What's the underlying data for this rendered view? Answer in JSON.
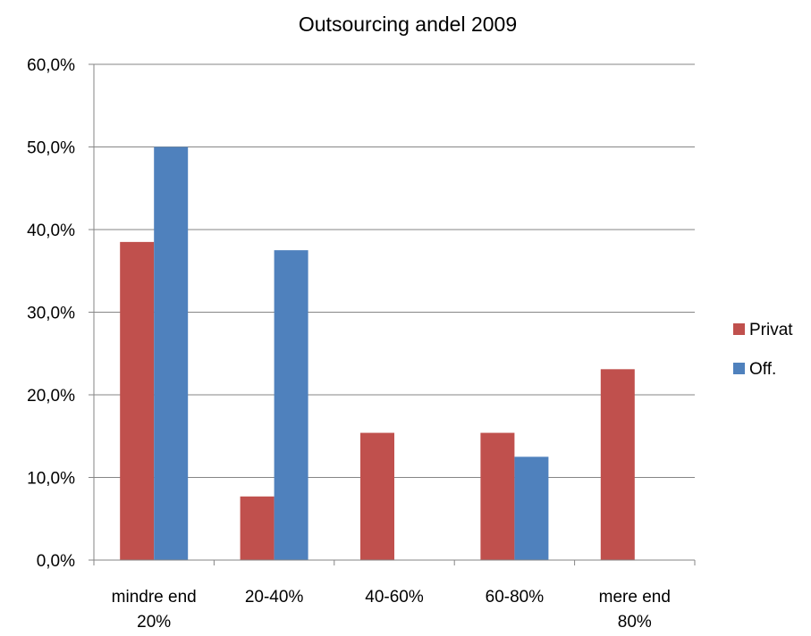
{
  "chart_data": {
    "type": "bar",
    "title": "Outsourcing andel 2009",
    "xlabel": "",
    "ylabel": "",
    "categories": [
      [
        "mindre end",
        "20%"
      ],
      [
        "20-40%"
      ],
      [
        "40-60%"
      ],
      [
        "60-80%"
      ],
      [
        "mere end",
        "80%"
      ]
    ],
    "series": [
      {
        "name": "Privat",
        "color": "#c0504d",
        "values": [
          38.5,
          7.7,
          15.4,
          15.4,
          23.1
        ]
      },
      {
        "name": "Off.",
        "color": "#4f81bd",
        "values": [
          50.0,
          37.5,
          0.0,
          12.5,
          0.0
        ]
      }
    ],
    "ylim": [
      0,
      60
    ],
    "yticks": [
      0,
      10,
      20,
      30,
      40,
      50,
      60
    ],
    "ytick_labels": [
      "0,0%",
      "10,0%",
      "20,0%",
      "30,0%",
      "40,0%",
      "50,0%",
      "60,0%"
    ],
    "grid": true,
    "legend_position": "right"
  }
}
